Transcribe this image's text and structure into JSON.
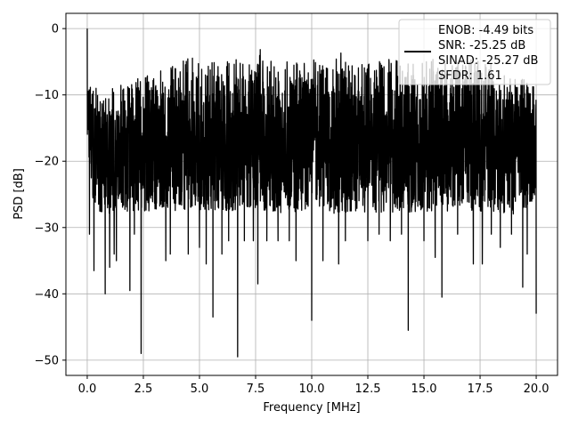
{
  "chart_data": {
    "type": "line",
    "xlabel": "Frequency [MHz]",
    "ylabel": "PSD [dB]",
    "xlim": [
      -0.95,
      20.95
    ],
    "ylim": [
      -52.3,
      2.3
    ],
    "x_ticks": [
      0.0,
      2.5,
      5.0,
      7.5,
      10.0,
      12.5,
      15.0,
      17.5,
      20.0
    ],
    "x_tick_labels": [
      "0.0",
      "2.5",
      "5.0",
      "7.5",
      "10.0",
      "12.5",
      "15.0",
      "17.5",
      "20.0"
    ],
    "y_ticks": [
      0,
      -10,
      -20,
      -30,
      -40,
      -50
    ],
    "y_tick_labels": [
      "0",
      "−10",
      "−20",
      "−30",
      "−40",
      "−50"
    ],
    "grid": true,
    "legend_position": "top-right",
    "legend_lines": [
      "ENOB: -4.49 bits",
      "SNR: -25.25 dB",
      "SINAD: -25.27 dB",
      "SFDR: 1.61"
    ],
    "line_color": "#000000",
    "series": [
      {
        "x_start": 0.0,
        "x_end": 20.0,
        "upper_envelope": [
          [
            0.0,
            0
          ],
          [
            0.05,
            -7
          ],
          [
            0.2,
            -6.5
          ],
          [
            0.5,
            -10
          ],
          [
            1.0,
            -9
          ],
          [
            1.5,
            -8.5
          ],
          [
            2.0,
            -8
          ],
          [
            2.5,
            -7
          ],
          [
            3.0,
            -6
          ],
          [
            3.5,
            -6.5
          ],
          [
            4.0,
            -5
          ],
          [
            4.5,
            -4
          ],
          [
            5.0,
            -5
          ],
          [
            5.5,
            -4.5
          ],
          [
            6.0,
            -5
          ],
          [
            6.5,
            -4.5
          ],
          [
            6.7,
            -4
          ],
          [
            7.0,
            -5
          ],
          [
            7.5,
            -4
          ],
          [
            7.6,
            -1.5
          ],
          [
            8.0,
            -4.5
          ],
          [
            8.5,
            -5
          ],
          [
            9.0,
            -4
          ],
          [
            9.5,
            -5
          ],
          [
            10.0,
            -4.5
          ],
          [
            10.5,
            -5
          ],
          [
            11.0,
            -4.5
          ],
          [
            11.2,
            -2
          ],
          [
            11.5,
            -4
          ],
          [
            12.0,
            -5
          ],
          [
            12.5,
            -4.5
          ],
          [
            13.0,
            -5
          ],
          [
            13.5,
            -4
          ],
          [
            14.0,
            -5
          ],
          [
            14.5,
            -4.5
          ],
          [
            15.0,
            -5
          ],
          [
            15.5,
            -4
          ],
          [
            16.0,
            -4.5
          ],
          [
            16.5,
            -5
          ],
          [
            17.0,
            -4
          ],
          [
            17.5,
            -4.5
          ],
          [
            18.0,
            -5
          ],
          [
            18.5,
            -7
          ],
          [
            19.0,
            -7.5
          ],
          [
            19.5,
            -7
          ],
          [
            20.0,
            -8.5
          ]
        ],
        "lower_envelope": [
          [
            0.0,
            -17
          ],
          [
            0.2,
            -25
          ],
          [
            0.5,
            -28
          ],
          [
            1.0,
            -28
          ],
          [
            2.0,
            -27.5
          ],
          [
            3.0,
            -27.5
          ],
          [
            4.0,
            -27.5
          ],
          [
            5.0,
            -27.5
          ],
          [
            6.0,
            -27.5
          ],
          [
            7.0,
            -27.5
          ],
          [
            8.0,
            -27.5
          ],
          [
            9.0,
            -28
          ],
          [
            10.0,
            -27.5
          ],
          [
            11.0,
            -28
          ],
          [
            12.0,
            -27.5
          ],
          [
            13.0,
            -28
          ],
          [
            14.0,
            -27.5
          ],
          [
            15.0,
            -28
          ],
          [
            16.0,
            -27.5
          ],
          [
            17.0,
            -28
          ],
          [
            18.0,
            -27.5
          ],
          [
            19.0,
            -28
          ],
          [
            20.0,
            -27
          ]
        ],
        "deep_nulls": [
          [
            0.1,
            -31
          ],
          [
            0.3,
            -36.5
          ],
          [
            0.8,
            -40
          ],
          [
            1.0,
            -36
          ],
          [
            1.2,
            -34
          ],
          [
            1.3,
            -35
          ],
          [
            1.9,
            -39.5
          ],
          [
            2.1,
            -31
          ],
          [
            2.4,
            -49
          ],
          [
            3.5,
            -35
          ],
          [
            3.7,
            -34
          ],
          [
            4.5,
            -34
          ],
          [
            5.0,
            -33
          ],
          [
            5.3,
            -35.5
          ],
          [
            5.6,
            -43.5
          ],
          [
            6.0,
            -34
          ],
          [
            6.3,
            -32
          ],
          [
            6.7,
            -49.5
          ],
          [
            7.0,
            -32
          ],
          [
            7.4,
            -32
          ],
          [
            7.6,
            -38.5
          ],
          [
            8.0,
            -32
          ],
          [
            8.5,
            -32
          ],
          [
            9.0,
            -32
          ],
          [
            9.3,
            -35
          ],
          [
            10.0,
            -44
          ],
          [
            10.5,
            -35
          ],
          [
            11.2,
            -35.5
          ],
          [
            11.5,
            -32
          ],
          [
            12.5,
            -32
          ],
          [
            13.0,
            -31
          ],
          [
            13.5,
            -32
          ],
          [
            14.0,
            -31
          ],
          [
            14.3,
            -45.5
          ],
          [
            15.0,
            -32
          ],
          [
            15.5,
            -34.5
          ],
          [
            15.8,
            -40.5
          ],
          [
            16.5,
            -31
          ],
          [
            17.2,
            -35.5
          ],
          [
            17.6,
            -35.5
          ],
          [
            18.0,
            -31
          ],
          [
            18.4,
            -33
          ],
          [
            18.9,
            -31
          ],
          [
            19.4,
            -39
          ],
          [
            19.6,
            -34
          ],
          [
            20.0,
            -43
          ]
        ]
      }
    ]
  }
}
